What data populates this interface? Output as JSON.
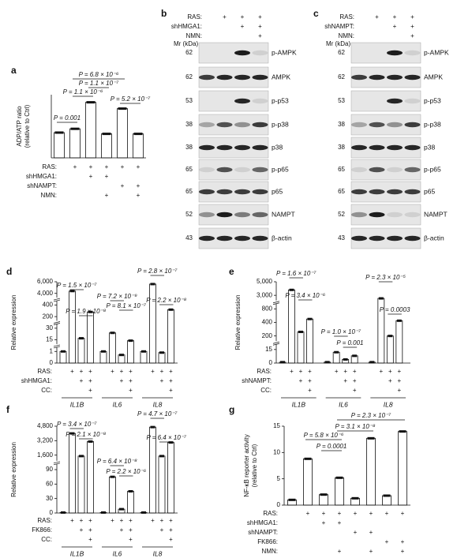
{
  "panel_a": {
    "label": "a",
    "y_label": [
      "ADP/ATP ratio",
      "(relative to Ctrl)"
    ],
    "ylim": [
      0,
      2.5
    ],
    "values": [
      1.0,
      1.15,
      2.2,
      0.95,
      1.95,
      0.95
    ],
    "annotations": [
      "P = 6.8 × 10⁻⁶",
      "P = 1.1 × 10⁻⁷",
      "P = 1.1 × 10⁻⁶",
      "P = 5.2 × 10⁻⁷",
      "P = 0.001"
    ],
    "conditions": [
      {
        "label": "RAS:",
        "marks": [
          null,
          "+",
          "+",
          "+",
          "+",
          "+"
        ]
      },
      {
        "label": "shHMGA1:",
        "marks": [
          null,
          null,
          "+",
          "+",
          null,
          null
        ]
      },
      {
        "label": "shNAMPT:",
        "marks": [
          null,
          null,
          null,
          null,
          "+",
          "+"
        ]
      },
      {
        "label": "NMN:",
        "marks": [
          null,
          null,
          null,
          "+",
          null,
          "+"
        ]
      }
    ]
  },
  "panel_b": {
    "label": "b",
    "mr_label": "Mr (kDa)",
    "conditions": [
      {
        "label": "RAS:",
        "marks": [
          null,
          "+",
          "+",
          "+"
        ]
      },
      {
        "label": "shHMGA1:",
        "marks": [
          null,
          null,
          "+",
          "+"
        ]
      },
      {
        "label": "NMN:",
        "marks": [
          null,
          null,
          null,
          "+"
        ]
      }
    ],
    "rows": [
      {
        "mw": 62,
        "protein": "p-AMPK"
      },
      {
        "mw": 62,
        "protein": "AMPK"
      },
      {
        "mw": 53,
        "protein": "p-p53"
      },
      {
        "mw": 38,
        "protein": "p-p38"
      },
      {
        "mw": 38,
        "protein": "p38"
      },
      {
        "mw": 65,
        "protein": "p-p65"
      },
      {
        "mw": 65,
        "protein": "p65"
      },
      {
        "mw": 52,
        "protein": "NAMPT"
      },
      {
        "mw": 43,
        "protein": "β-actin"
      }
    ]
  },
  "panel_c": {
    "label": "c",
    "mr_label": "Mr (kDa)",
    "conditions": [
      {
        "label": "RAS:",
        "marks": [
          null,
          "+",
          "+",
          "+"
        ]
      },
      {
        "label": "shNAMPT:",
        "marks": [
          null,
          null,
          "+",
          "+"
        ]
      },
      {
        "label": "NMN:",
        "marks": [
          null,
          null,
          null,
          "+"
        ]
      }
    ],
    "rows": [
      {
        "mw": 62,
        "protein": "p-AMPK"
      },
      {
        "mw": 62,
        "protein": "AMPK"
      },
      {
        "mw": 53,
        "protein": "p-p53"
      },
      {
        "mw": 38,
        "protein": "p-p38"
      },
      {
        "mw": 38,
        "protein": "p38"
      },
      {
        "mw": 65,
        "protein": "p-p65"
      },
      {
        "mw": 65,
        "protein": "p65"
      },
      {
        "mw": 52,
        "protein": "NAMPT"
      },
      {
        "mw": 43,
        "protein": "β-actin"
      }
    ]
  },
  "panel_d": {
    "label": "d",
    "y_label": [
      "Relative expression"
    ],
    "broken_axis": true,
    "ylim": [
      0,
      6000
    ],
    "yticks": [
      0,
      1,
      15,
      30,
      200,
      400,
      {
        "value": 4000,
        "label": "4,000"
      },
      {
        "value": 6000,
        "label": "6,000"
      }
    ],
    "groups": [
      {
        "name": "IL1B",
        "values": [
          1,
          4400,
          17,
          280
        ]
      },
      {
        "name": "IL6",
        "values": [
          1,
          24,
          0.7,
          14
        ]
      },
      {
        "name": "IL8",
        "values": [
          1,
          5600,
          0.9,
          320
        ]
      }
    ],
    "annotations": [
      "P = 1.5 × 10⁻⁷",
      "P = 1.9 × 10⁻⁸",
      "P = 7.2 × 10⁻⁹",
      "P = 8.1 × 10⁻⁷",
      "P = 2.8 × 10⁻⁷",
      "P = 2.2 × 10⁻⁸"
    ],
    "conditions": [
      {
        "label": "RAS:",
        "marks": [
          null,
          "+",
          "+",
          "+",
          null,
          "+",
          "+",
          "+",
          null,
          "+",
          "+",
          "+"
        ]
      },
      {
        "label": "shHMGA1:",
        "marks": [
          null,
          null,
          "+",
          "+",
          null,
          null,
          "+",
          "+",
          null,
          null,
          "+",
          "+"
        ]
      },
      {
        "label": "CC:",
        "marks": [
          null,
          null,
          null,
          "+",
          null,
          null,
          null,
          "+",
          null,
          null,
          null,
          "+"
        ]
      }
    ]
  },
  "panel_e": {
    "label": "e",
    "y_label": [
      "Relative expression"
    ],
    "broken_axis": true,
    "ylim": [
      0,
      5000
    ],
    "yticks": [
      0,
      15,
      200,
      400,
      800,
      {
        "value": 3000,
        "label": "3,000"
      },
      {
        "value": 5000,
        "label": "5,000"
      }
    ],
    "groups": [
      {
        "name": "IL1B",
        "values": [
          1,
          3800,
          260,
          500
        ]
      },
      {
        "name": "IL6",
        "values": [
          1,
          12,
          4,
          8
        ]
      },
      {
        "name": "IL8",
        "values": [
          1,
          2500,
          200,
          450
        ]
      }
    ],
    "annotations": [
      "P = 1.6 × 10⁻⁷",
      "P = 3.4 × 10⁻⁶",
      "P = 1.0 × 10⁻⁷",
      "P = 0.001",
      "P = 2.3 × 10⁻⁵",
      "P = 0.0003"
    ],
    "conditions": [
      {
        "label": "RAS:",
        "marks": [
          null,
          "+",
          "+",
          "+",
          null,
          "+",
          "+",
          "+",
          null,
          "+",
          "+",
          "+"
        ]
      },
      {
        "label": "shNAMPT:",
        "marks": [
          null,
          null,
          "+",
          "+",
          null,
          null,
          "+",
          "+",
          null,
          null,
          "+",
          "+"
        ]
      },
      {
        "label": "CC:",
        "marks": [
          null,
          null,
          null,
          "+",
          null,
          null,
          null,
          "+",
          null,
          null,
          null,
          "+"
        ]
      }
    ]
  },
  "panel_f": {
    "label": "f",
    "y_label": [
      "Relative expression"
    ],
    "broken_axis": true,
    "ylim": [
      0,
      4800
    ],
    "yticks": [
      0,
      30,
      60,
      90,
      {
        "value": 1600,
        "label": "1,600"
      },
      {
        "value": 3200,
        "label": "3,200"
      },
      {
        "value": 4800,
        "label": "4,800"
      }
    ],
    "groups": [
      {
        "name": "IL1B",
        "values": [
          1,
          4000,
          1500,
          3100
        ]
      },
      {
        "name": "IL6",
        "values": [
          1,
          75,
          8,
          45
        ]
      },
      {
        "name": "IL8",
        "values": [
          1,
          4700,
          1500,
          3000
        ]
      }
    ],
    "annotations": [
      "P = 3.4 × 10⁻⁷",
      "P = 2.1 × 10⁻⁸",
      "P = 6.4 × 10⁻⁸",
      "P = 2.2 × 10⁻⁶",
      "P = 4.7 × 10⁻⁷",
      "P = 6.4 × 10⁻⁷"
    ],
    "conditions": [
      {
        "label": "RAS:",
        "marks": [
          null,
          "+",
          "+",
          "+",
          null,
          "+",
          "+",
          "+",
          null,
          "+",
          "+",
          "+"
        ]
      },
      {
        "label": "FK866:",
        "marks": [
          null,
          null,
          "+",
          "+",
          null,
          null,
          "+",
          "+",
          null,
          null,
          "+",
          "+"
        ]
      },
      {
        "label": "CC:",
        "marks": [
          null,
          null,
          null,
          "+",
          null,
          null,
          null,
          "+",
          null,
          null,
          null,
          "+"
        ]
      }
    ]
  },
  "panel_g": {
    "label": "g",
    "y_label": [
      "NF-κB reporter activity",
      "(relative to Ctrl)"
    ],
    "ylim": [
      0,
      15
    ],
    "yticks": [
      0,
      5,
      10,
      15
    ],
    "values": [
      1,
      8.8,
      2,
      5.2,
      1.3,
      12.7,
      1.8,
      14
    ],
    "annotations": [
      "P = 2.3 × 10⁻⁷",
      "P = 3.1 × 10⁻⁸",
      "P = 5.8 × 10⁻⁶",
      "P = 0.0001"
    ],
    "conditions": [
      {
        "label": "RAS:",
        "marks": [
          null,
          "+",
          "+",
          "+",
          "+",
          "+",
          "+",
          "+"
        ]
      },
      {
        "label": "shHMGA1:",
        "marks": [
          null,
          null,
          "+",
          "+",
          null,
          null,
          null,
          null
        ]
      },
      {
        "label": "shNAMPT:",
        "marks": [
          null,
          null,
          null,
          null,
          "+",
          "+",
          null,
          null
        ]
      },
      {
        "label": "FK866:",
        "marks": [
          null,
          null,
          null,
          null,
          null,
          null,
          "+",
          "+"
        ]
      },
      {
        "label": "NMN:",
        "marks": [
          null,
          null,
          null,
          "+",
          null,
          "+",
          null,
          "+"
        ]
      }
    ]
  }
}
